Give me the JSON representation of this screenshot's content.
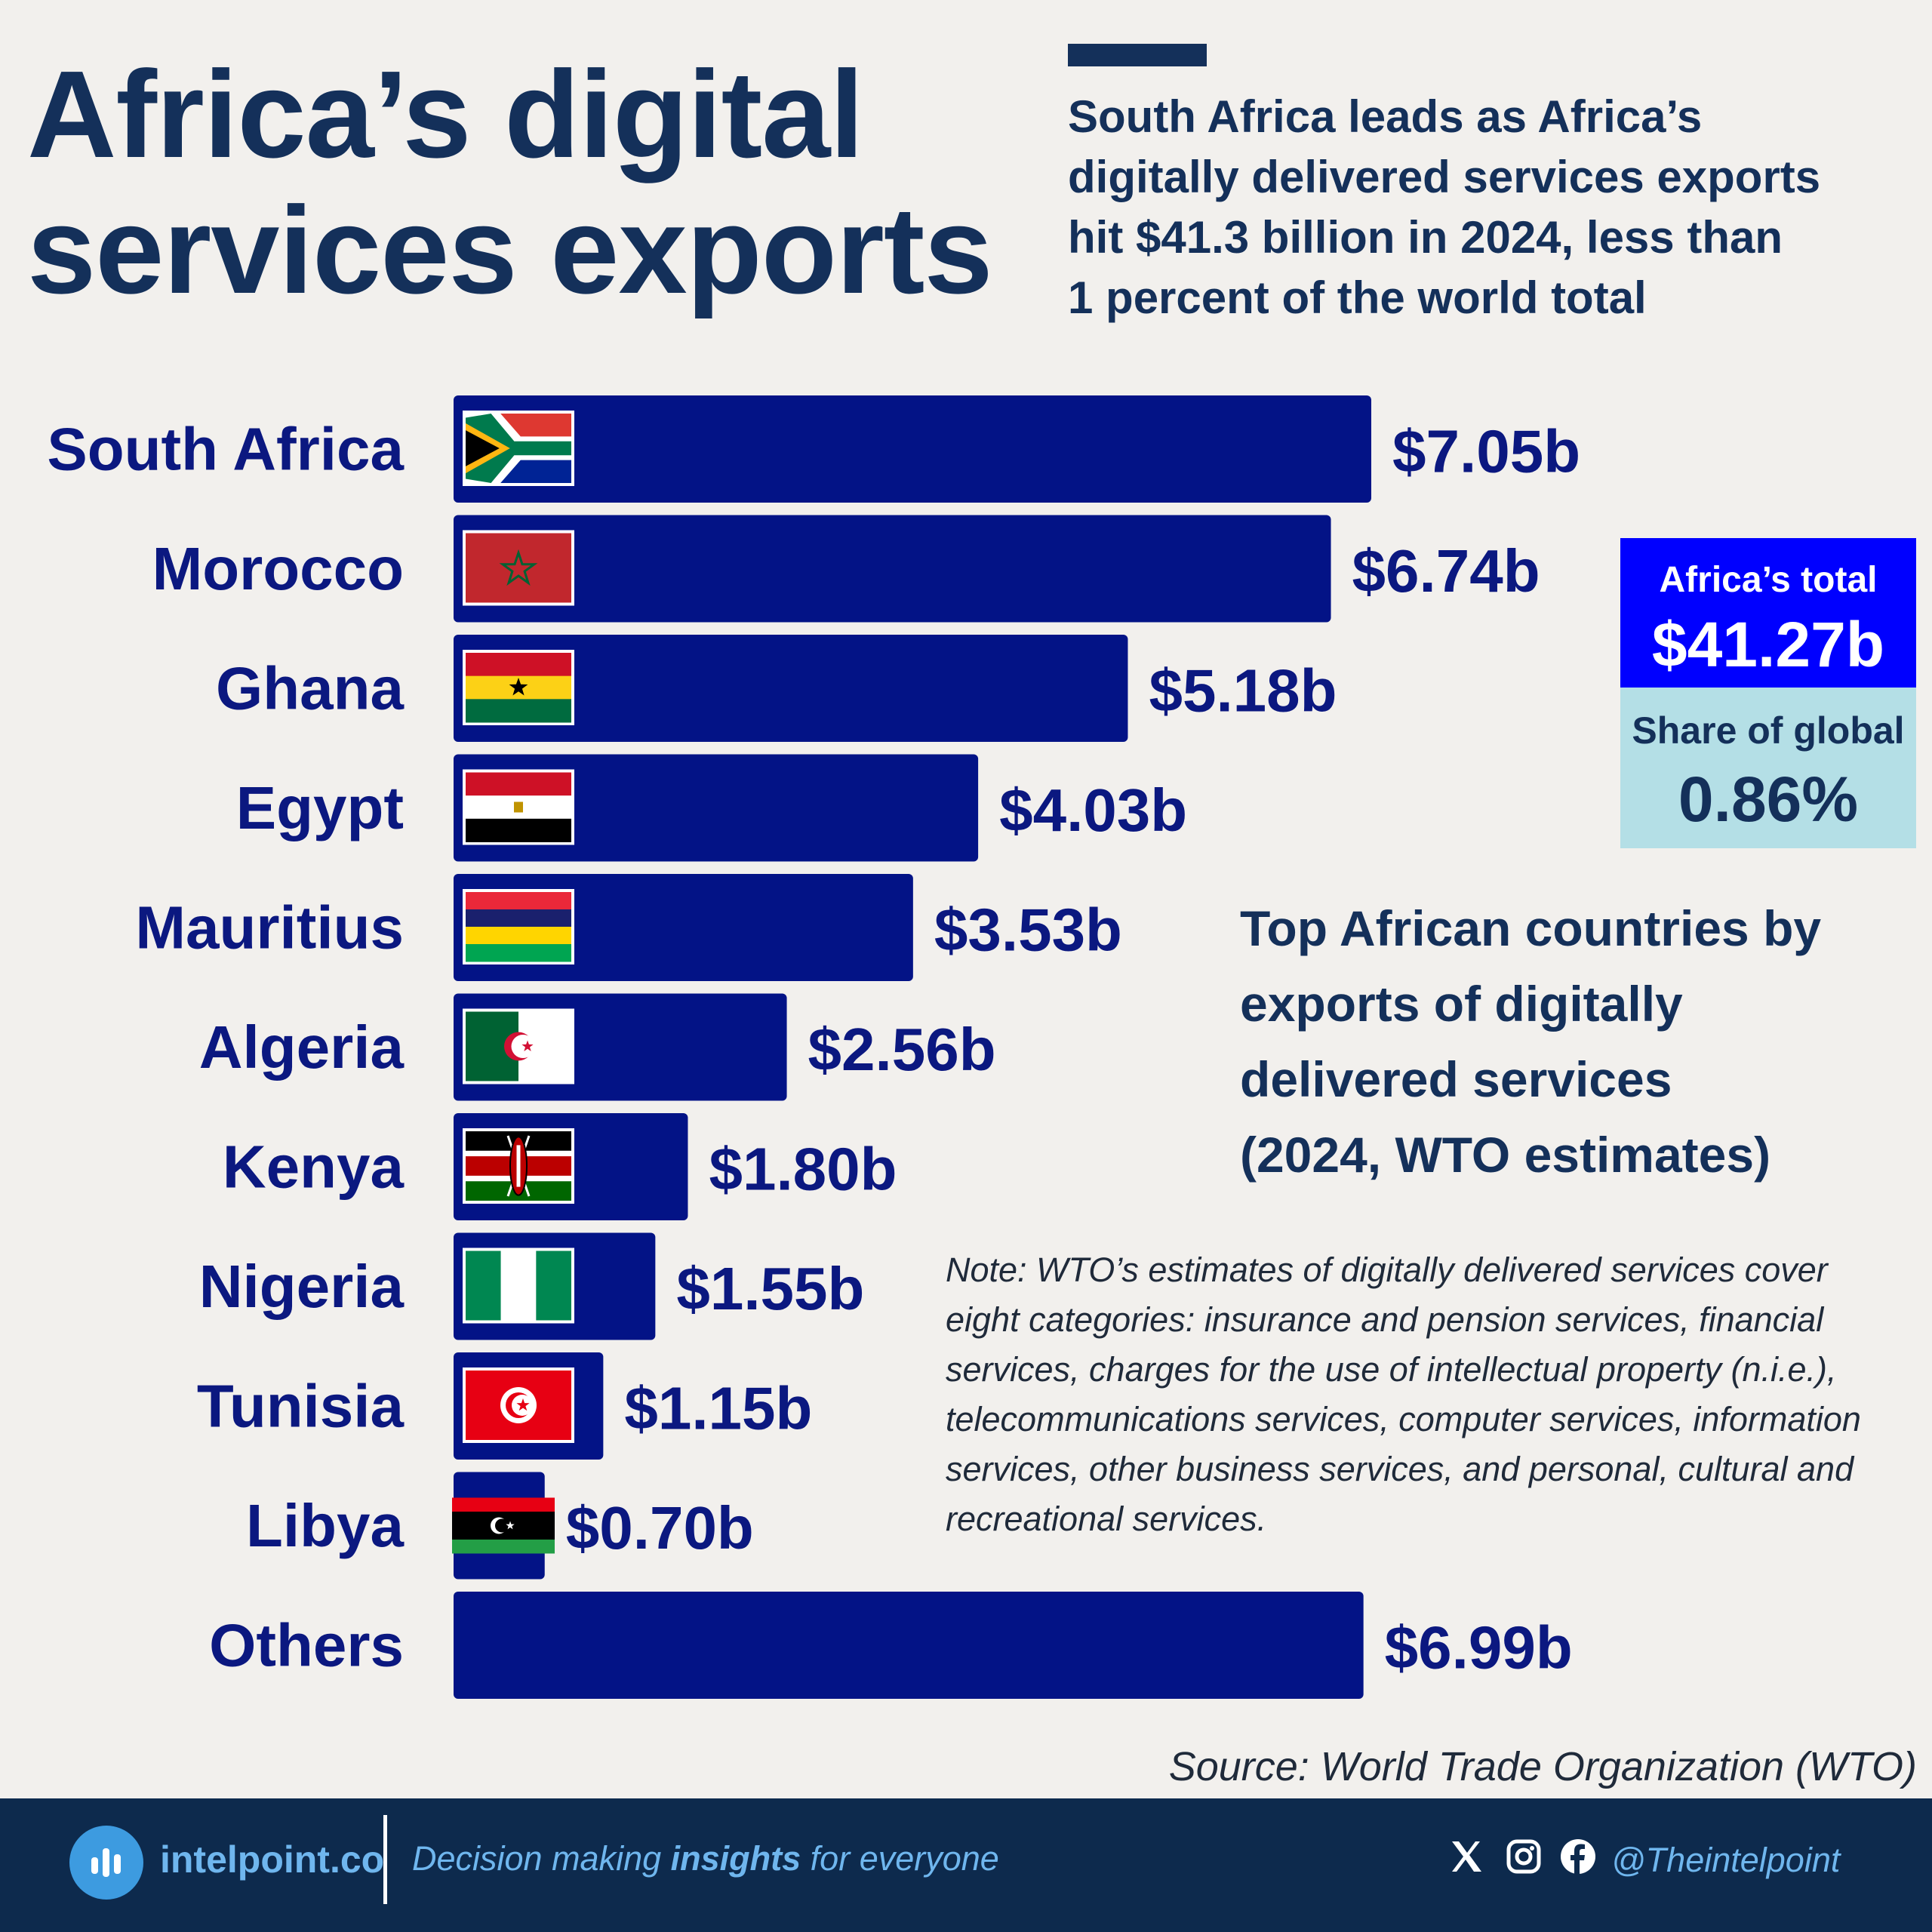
{
  "title_lines": [
    "Africa’s digital",
    "services exports"
  ],
  "subtitle_lines": [
    "South Africa leads as Africa’s",
    "digitally delivered services exports",
    "hit $41.3 billion in 2024, less than",
    "1 percent of the world total"
  ],
  "colors": {
    "bar": "#031386",
    "title": "#14305a",
    "labels": "#0b1880",
    "total_box": "#0000ff",
    "share_box": "#b4dfe6",
    "footer": "#0d2a4d"
  },
  "chart_data": {
    "type": "bar",
    "orientation": "horizontal",
    "categories": [
      "South Africa",
      "Morocco",
      "Ghana",
      "Egypt",
      "Mauritius",
      "Algeria",
      "Kenya",
      "Nigeria",
      "Tunisia",
      "Libya",
      "Others"
    ],
    "values": [
      7.05,
      6.74,
      5.18,
      4.03,
      3.53,
      2.56,
      1.8,
      1.55,
      1.15,
      0.7,
      6.99
    ],
    "value_labels": [
      "$7.05b",
      "$6.74b",
      "$5.18b",
      "$4.03b",
      "$3.53b",
      "$2.56b",
      "$1.80b",
      "$1.55b",
      "$1.15b",
      "$0.70b",
      "$6.99b"
    ],
    "flags": [
      "south-africa",
      "morocco",
      "ghana",
      "egypt",
      "mauritius",
      "algeria",
      "kenya",
      "nigeria",
      "tunisia",
      "libya",
      null
    ],
    "unit": "billion USD",
    "grid": false,
    "legend": false
  },
  "stats": {
    "total_label": "Africa’s total",
    "total_value": "$41.27b",
    "share_label": "Share of global",
    "share_value": "0.86%"
  },
  "description_lines": [
    "Top African countries by",
    "exports of digitally",
    "delivered services",
    "(2024, WTO estimates)"
  ],
  "note_lines": [
    "Note: WTO’s estimates of digitally delivered services cover",
    "eight categories: insurance and pension services, financial",
    "services, charges for the use of intellectual property (n.i.e.),",
    "telecommunications services, computer services, information",
    "services, other business services, and personal, cultural and",
    "recreational services."
  ],
  "source": "Source: World Trade Organization (WTO)",
  "footer": {
    "brand": "intelpoint.co",
    "tagline_pre": "Decision making ",
    "tagline_bold": "insights",
    "tagline_post": " for everyone",
    "handle": "@Theintelpoint",
    "social_icons": [
      "x-icon",
      "instagram-icon",
      "facebook-icon"
    ]
  }
}
